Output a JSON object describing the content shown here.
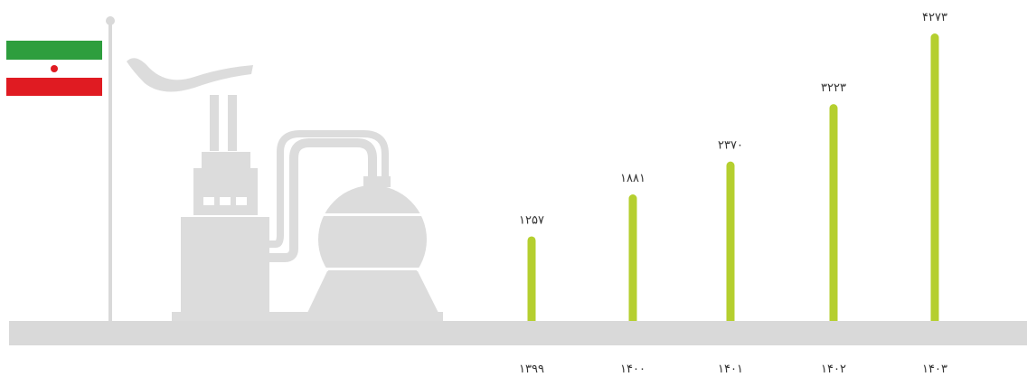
{
  "chart_data": {
    "type": "bar",
    "categories": [
      "۱۳۹۹",
      "۱۴۰۰",
      "۱۴۰۱",
      "۱۴۰۲",
      "۱۴۰۳"
    ],
    "values": [
      1257,
      1881,
      2370,
      3223,
      4273
    ],
    "value_labels": [
      "۱۲۵۷",
      "۱۸۸۱",
      "۲۳۷۰",
      "۳۲۲۳",
      "۴۲۷۳"
    ],
    "color": "#b5cf2f"
  }
}
